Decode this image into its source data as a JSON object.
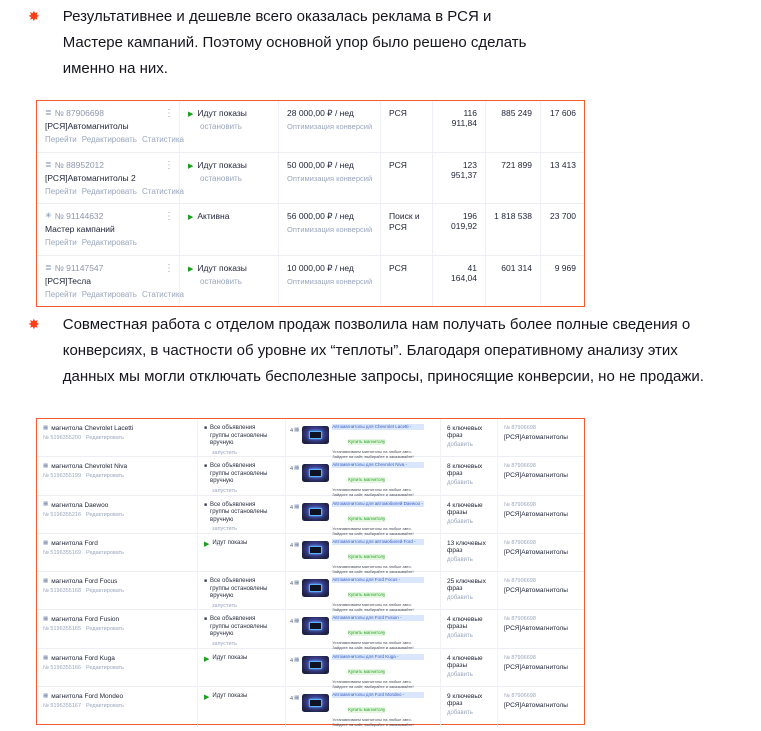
{
  "colors": {
    "frame_orange": "#f45b2c",
    "bullet_orange": "#ff3d17",
    "status_green": "#18a118",
    "link_gray": "#9aa6bd",
    "text_dark": "#23283a",
    "ad_blue": "#3a5fc8",
    "ad_green": "#27a327"
  },
  "icons": {
    "bullet": "✸",
    "campaign": "≣",
    "master": "✳",
    "menu": "⋮",
    "play": "▶",
    "stop": "■",
    "grid": "▦"
  },
  "notes": [
    {
      "text": "Результативнее и дешевле всего оказалась реклама в РСЯ и\nМастере кампаний. Поэтому основной упор было решено сделать\nименно на них."
    },
    {
      "text": "Совместная работа с отделом продаж позволила нам получать более полные сведения о\nконверсиях, в частности об уровне их “теплоты”. Благодаря оперативному анализу этих\nданных мы могли отключать бесполезные запросы, приносящие конверсии, но не продажи."
    }
  ],
  "campaigns": {
    "rows": [
      {
        "icon": "campaign",
        "id": "№ 87906698",
        "name": "[РСЯ]Автомагнитолы",
        "links": [
          "Перейти",
          "Редактировать",
          "Статистика"
        ],
        "status": "Идут показы",
        "action": "остановить",
        "budget": "28 000,00 ₽ / нед",
        "strategy": "Оптимизация конверсий",
        "placement": "РСЯ",
        "cost": "116 911,84",
        "impressions": "885 249",
        "clicks": "17 606"
      },
      {
        "icon": "campaign",
        "id": "№ 88952012",
        "name": "[РСЯ]Автомагнитолы 2",
        "links": [
          "Перейти",
          "Редактировать",
          "Статистика"
        ],
        "status": "Идут показы",
        "action": "остановить",
        "budget": "50 000,00 ₽ / нед",
        "strategy": "Оптимизация конверсий",
        "placement": "РСЯ",
        "cost": "123 951,37",
        "impressions": "721 899",
        "clicks": "13 413"
      },
      {
        "icon": "master",
        "id": "№ 91144632",
        "name": "Мастер кампаний",
        "links": [
          "Перейти",
          "Редактировать"
        ],
        "status": "Активна",
        "action": "",
        "budget": "56 000,00 ₽ / нед",
        "strategy": "Оптимизация конверсий",
        "placement": "Поиск и РСЯ",
        "cost": "196 019,92",
        "impressions": "1 818 538",
        "clicks": "23 700"
      },
      {
        "icon": "campaign",
        "id": "№ 91147547",
        "name": "[РСЯ]Тесла",
        "links": [
          "Перейти",
          "Редактировать",
          "Статистика"
        ],
        "status": "Идут показы",
        "action": "остановить",
        "budget": "10 000,00 ₽ / нед",
        "strategy": "Оптимизация конверсий",
        "placement": "РСЯ",
        "cost": "41 164,04",
        "impressions": "601 314",
        "clicks": "9 969"
      }
    ]
  },
  "groups": {
    "edit_label": "Редактировать",
    "add_label": "добавить",
    "stopped_status": "Все объявления группы остановлены вручную",
    "stopped_action": "запустить",
    "active_status": "Идут показы",
    "ad_green": "Купить магнитолу",
    "ad_desc": "Устанавливаем магнитолы на любые авто. Зайдите на сайт, выбирайте и заказывайте!",
    "rows": [
      {
        "name": "магнитола Chevrolet Lacetti",
        "id": "№ 5196355200",
        "status": "stopped",
        "ads_count": "4",
        "ad_title": "Автомагнитолы для Chevrolet Lacetti -",
        "keywords": "6 ключевых фраз",
        "campaign_id": "№ 87906698",
        "campaign_name": "[РСЯ]Автомагнитолы"
      },
      {
        "name": "магнитола Chevrolet Niva",
        "id": "№ 5196355199",
        "status": "stopped",
        "ads_count": "4",
        "ad_title": "Автомагнитолы для Chevrolet Niva -",
        "keywords": "8 ключевых фраз",
        "campaign_id": "№ 87906698",
        "campaign_name": "[РСЯ]Автомагнитолы"
      },
      {
        "name": "магнитола Daewoo",
        "id": "№ 5196355216",
        "status": "stopped",
        "ads_count": "4",
        "ad_title": "Автомагнитолы для автомобилей Daewoo -",
        "keywords": "4 ключевые фразы",
        "campaign_id": "№ 87906698",
        "campaign_name": "[РСЯ]Автомагнитолы"
      },
      {
        "name": "магнитола Ford",
        "id": "№ 5196355169",
        "status": "active",
        "ads_count": "4",
        "ad_title": "Автомагнитолы для автомобилей Ford -",
        "keywords": "13 ключевых фраз",
        "campaign_id": "№ 87906698",
        "campaign_name": "[РСЯ]Автомагнитолы"
      },
      {
        "name": "магнитола Ford Focus",
        "id": "№ 5196355168",
        "status": "stopped",
        "ads_count": "4",
        "ad_title": "Автомагнитолы для Ford Focus -",
        "keywords": "25 ключевых фраз",
        "campaign_id": "№ 87906698",
        "campaign_name": "[РСЯ]Автомагнитолы"
      },
      {
        "name": "магнитола Ford Fusion",
        "id": "№ 5196355165",
        "status": "stopped",
        "ads_count": "4",
        "ad_title": "Автомагнитолы для Ford Fusion -",
        "keywords": "4 ключевые фразы",
        "campaign_id": "№ 87906698",
        "campaign_name": "[РСЯ]Автомагнитолы"
      },
      {
        "name": "магнитола Ford Kuga",
        "id": "№ 5196355166",
        "status": "active",
        "ads_count": "4",
        "ad_title": "Автомагнитолы для Ford Kuga -",
        "keywords": "4 ключевые фразы",
        "campaign_id": "№ 87906698",
        "campaign_name": "[РСЯ]Автомагнитолы"
      },
      {
        "name": "магнитола Ford Mondeo",
        "id": "№ 5196355167",
        "status": "active",
        "ads_count": "4",
        "ad_title": "Автомагнитолы для Ford Mondeo -",
        "keywords": "9 ключевых фраз",
        "campaign_id": "№ 87906698",
        "campaign_name": "[РСЯ]Автомагнитолы"
      }
    ]
  }
}
